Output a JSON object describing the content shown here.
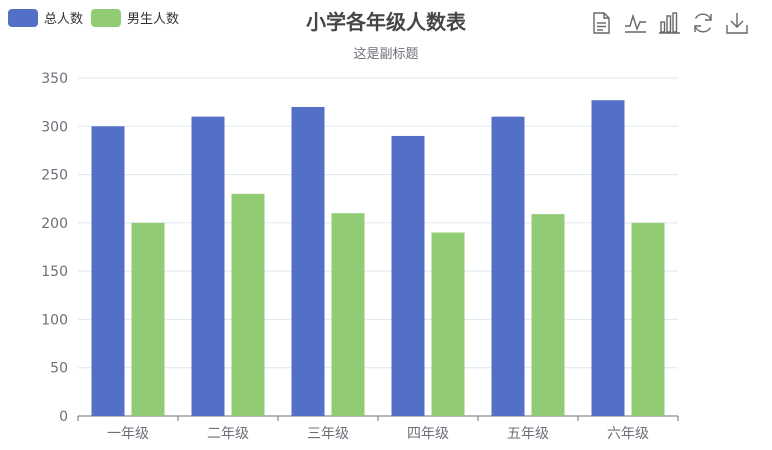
{
  "chart_data": {
    "type": "bar",
    "title": "小学各年级人数表",
    "subtitle": "这是副标题",
    "categories": [
      "一年级",
      "二年级",
      "三年级",
      "四年级",
      "五年级",
      "六年级"
    ],
    "series": [
      {
        "name": "总人数",
        "color": "#5470c6",
        "values": [
          300,
          310,
          320,
          290,
          310,
          327
        ]
      },
      {
        "name": "男生人数",
        "color": "#91cc75",
        "values": [
          200,
          230,
          210,
          190,
          209,
          200
        ]
      }
    ],
    "ylim": [
      0,
      350
    ],
    "yticks": [
      0,
      50,
      100,
      150,
      200,
      250,
      300,
      350
    ],
    "grid": true,
    "legend_position": "top-left"
  },
  "toolbox": [
    {
      "name": "data-view-icon"
    },
    {
      "name": "line-chart-icon"
    },
    {
      "name": "bar-chart-icon"
    },
    {
      "name": "restore-icon"
    },
    {
      "name": "download-icon"
    }
  ]
}
